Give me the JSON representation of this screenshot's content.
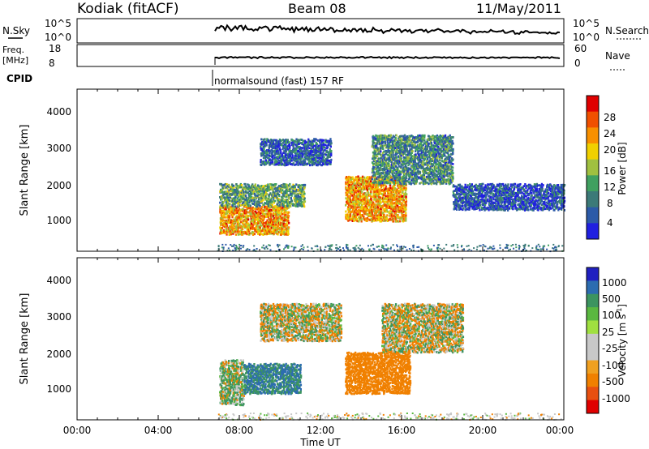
{
  "header": {
    "station": "Kodiak (fitACF)",
    "beam": "Beam 08",
    "date": "11/May/2011"
  },
  "summary": {
    "noise_panel": {
      "left_label": "N.Sky",
      "right_label": "N.Search",
      "left_ticks": [
        "10^5",
        "10^0"
      ],
      "right_ticks": [
        "10^5",
        "10^0"
      ]
    },
    "freq_panel": {
      "left_label_1": "Freq.",
      "left_label_2": "[MHz]",
      "right_label": "Nave",
      "left_ticks": [
        "18",
        "8"
      ],
      "right_ticks": [
        "60",
        "0"
      ]
    },
    "cpid_label": "CPID",
    "cpid_text": "normalsound (fast) 157 RF"
  },
  "colorbars": {
    "power": {
      "label": "Power [dB]",
      "ticks": [
        "28",
        "24",
        "20",
        "16",
        "12",
        "8",
        "4"
      ],
      "colors": [
        "#e00000",
        "#f05000",
        "#f89000",
        "#f0d000",
        "#a0c040",
        "#40a060",
        "#3c7a78",
        "#2c5aa8",
        "#2020e0"
      ]
    },
    "velocity": {
      "label_main": "Velocity [m s",
      "label_sup": "-1",
      "label_close": "]",
      "ticks": [
        "1000",
        "500",
        "100",
        "25",
        "-25",
        "-100",
        "-500",
        "-1000"
      ],
      "colors": [
        "#2020c0",
        "#2c6cb0",
        "#3c9460",
        "#5ab840",
        "#a0e040",
        "#c8c8c8",
        "#c8c8c8",
        "#f0a020",
        "#f08000",
        "#e85010",
        "#e00000"
      ]
    }
  },
  "chart_data": [
    {
      "type": "heatmap",
      "name": "power",
      "ylabel": "Slant Range [km]",
      "yticks": [
        "1000",
        "2000",
        "3000",
        "4000"
      ],
      "xlim": [
        "00:00",
        "24:00"
      ],
      "ylim": [
        180,
        4500
      ],
      "regions": [
        {
          "t0": 7.0,
          "t1": 10.4,
          "r0": 650,
          "r1": 1400,
          "value_db": 22
        },
        {
          "t0": 7.0,
          "t1": 11.2,
          "r0": 1400,
          "r1": 2000,
          "value_db": 12
        },
        {
          "t0": 13.2,
          "t1": 16.2,
          "r0": 1000,
          "r1": 2200,
          "value_db": 22
        },
        {
          "t0": 14.5,
          "t1": 18.5,
          "r0": 2000,
          "r1": 3300,
          "value_db": 10
        },
        {
          "t0": 9.0,
          "t1": 12.5,
          "r0": 2500,
          "r1": 3200,
          "value_db": 6
        },
        {
          "t0": 18.5,
          "t1": 24.0,
          "r0": 1300,
          "r1": 2000,
          "value_db": 5
        }
      ]
    },
    {
      "type": "heatmap",
      "name": "velocity",
      "ylabel": "Slant Range [km]",
      "yticks": [
        "1000",
        "2000",
        "3000",
        "4000"
      ],
      "xlim": [
        "00:00",
        "24:00"
      ],
      "ylim": [
        180,
        4500
      ],
      "regions": [
        {
          "t0": 7.0,
          "t1": 8.2,
          "r0": 600,
          "r1": 1800,
          "value_ms": 50
        },
        {
          "t0": 8.2,
          "t1": 11.0,
          "r0": 900,
          "r1": 1700,
          "value_ms": 300
        },
        {
          "t0": 13.2,
          "t1": 16.4,
          "r0": 900,
          "r1": 2000,
          "value_ms": -300
        },
        {
          "t0": 9.0,
          "t1": 13.0,
          "r0": 2300,
          "r1": 3300,
          "value_ms": 0
        },
        {
          "t0": 15.0,
          "t1": 19.0,
          "r0": 2000,
          "r1": 3300,
          "value_ms": 0
        }
      ]
    }
  ],
  "xaxis": {
    "ticks": [
      "00:00",
      "04:00",
      "08:00",
      "12:00",
      "16:00",
      "20:00",
      "00:00"
    ],
    "label": "Time UT"
  }
}
